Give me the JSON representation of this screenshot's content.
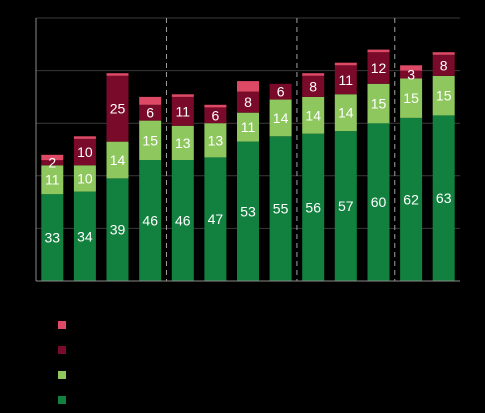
{
  "chart_data": {
    "type": "bar",
    "stacked": true,
    "categories": [
      "",
      "",
      "",
      "",
      "",
      "",
      "",
      "",
      "",
      "",
      "",
      "",
      ""
    ],
    "ylim": [
      0,
      100
    ],
    "grid": true,
    "group_separators_after_index": [
      3,
      7,
      10
    ],
    "series": [
      {
        "color": "#12813f",
        "values": [
          33,
          34,
          39,
          46,
          46,
          47,
          53,
          55,
          56,
          57,
          60,
          62,
          63
        ],
        "labels": [
          "33",
          "34",
          "39",
          "46",
          "46",
          "47",
          "53",
          "55",
          "56",
          "57",
          "60",
          "62",
          "63"
        ]
      },
      {
        "color": "#8dc75d",
        "values": [
          11,
          10,
          14,
          15,
          13,
          13,
          11,
          14,
          14,
          14,
          15,
          15,
          15
        ],
        "labels": [
          "11",
          "10",
          "14",
          "15",
          "13",
          "13",
          "11",
          "14",
          "14",
          "14",
          "15",
          "15",
          "15"
        ]
      },
      {
        "color": "#7a0a2a",
        "values": [
          2,
          10,
          25,
          6,
          11,
          6,
          8,
          6,
          8,
          11,
          12,
          3,
          8
        ],
        "labels": [
          "2",
          "10",
          "25",
          "6",
          "11",
          "6",
          "8",
          "6",
          "8",
          "11",
          "12",
          "3",
          "8"
        ]
      },
      {
        "color": "#de4a66",
        "values": [
          2,
          1,
          1,
          3,
          1,
          1,
          4,
          0,
          1,
          1,
          1,
          2,
          1
        ],
        "labels": [
          "",
          "",
          "",
          "",
          "",
          "",
          "",
          "",
          "",
          "",
          "",
          "",
          ""
        ]
      }
    ],
    "legend": {
      "placement": "bottom-left",
      "entries": [
        {
          "color": "#de4a66",
          "label": ""
        },
        {
          "color": "#7a0a2a",
          "label": ""
        },
        {
          "color": "#8dc75d",
          "label": ""
        },
        {
          "color": "#12813f",
          "label": ""
        }
      ]
    }
  }
}
